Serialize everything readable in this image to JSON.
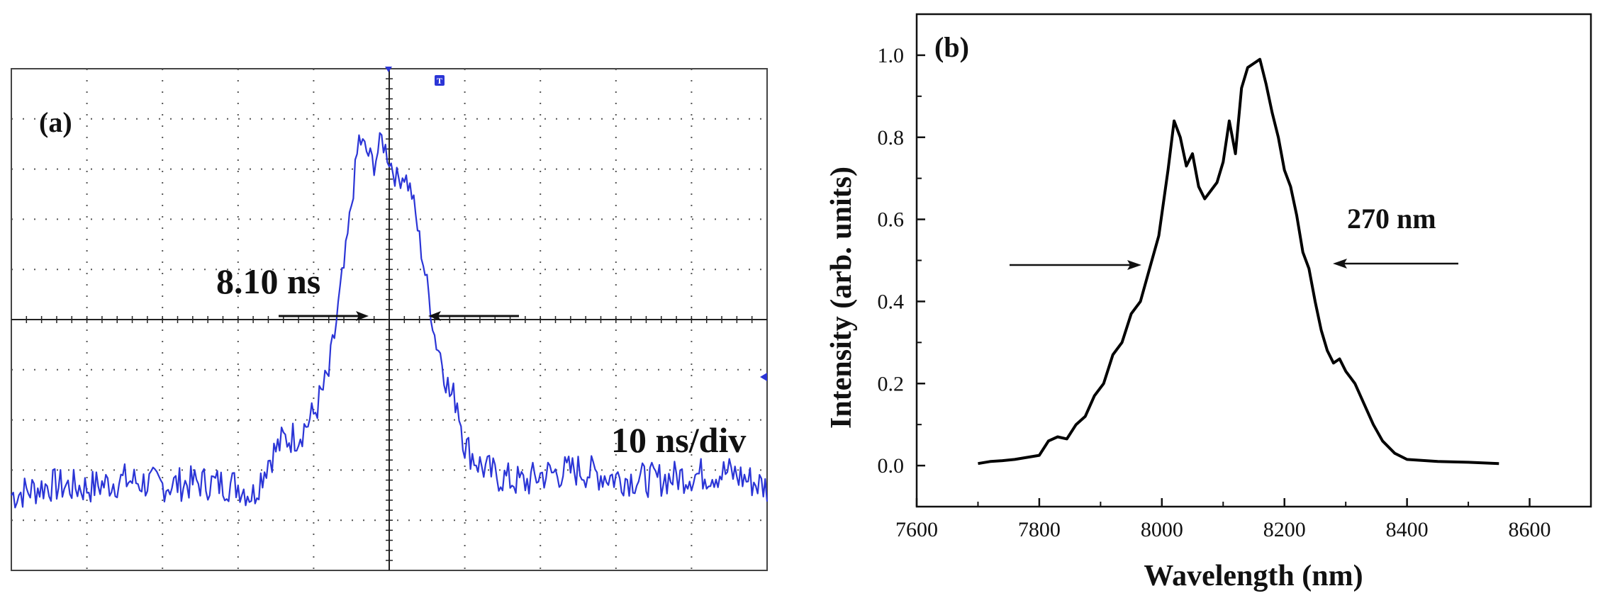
{
  "chart_data": [
    {
      "panel": "(a)",
      "type": "line",
      "title": "",
      "xlabel": "",
      "ylabel": "",
      "annotations": {
        "width_label": "8.10 ns",
        "timebase_label": "10 ns/div",
        "trigger_marker": "T"
      },
      "grid": true,
      "divisions": {
        "x": 10,
        "y": 10
      },
      "xlim": [
        -50,
        50
      ],
      "ylim": [
        -5,
        5
      ],
      "units": {
        "x": "ns",
        "y": "div"
      },
      "series": [
        {
          "name": "pulse",
          "color": "#2b35d6",
          "x": [
            -50,
            -45,
            -40,
            -35,
            -30,
            -25,
            -20,
            -18,
            -16,
            -14,
            -12,
            -10,
            -8,
            -6,
            -4,
            -2,
            -1,
            0,
            1,
            2,
            3,
            4,
            5,
            6,
            7,
            8,
            9,
            10,
            12,
            14,
            16,
            18,
            20,
            25,
            30,
            35,
            40,
            45,
            50
          ],
          "y": [
            -3.5,
            -3.3,
            -3.35,
            -3.2,
            -3.3,
            -3.25,
            -3.3,
            -3.5,
            -2.8,
            -2.4,
            -2.3,
            -1.9,
            -1.1,
            1.0,
            3.6,
            3.1,
            3.6,
            3.2,
            2.8,
            2.9,
            2.5,
            1.6,
            0.7,
            -0.3,
            -0.8,
            -1.5,
            -1.6,
            -2.5,
            -2.9,
            -3.1,
            -3.2,
            -3.25,
            -3.1,
            -3.0,
            -3.15,
            -3.2,
            -3.1,
            -3.05,
            -3.35
          ]
        }
      ]
    },
    {
      "panel": "(b)",
      "type": "line",
      "title": "",
      "xlabel": "Wavelength (nm)",
      "ylabel": "Intensity (arb. units)",
      "xlim": [
        7600,
        8700
      ],
      "ylim": [
        -0.1,
        1.1
      ],
      "xticks": [
        "7600",
        "7800",
        "8000",
        "8200",
        "8400",
        "8600"
      ],
      "yticks": [
        "0.0",
        "0.2",
        "0.4",
        "0.6",
        "0.8",
        "1.0"
      ],
      "grid": false,
      "annotations": {
        "fwhm_label": "270 nm"
      },
      "series": [
        {
          "name": "spectrum",
          "color": "#000000",
          "x": [
            7700,
            7720,
            7740,
            7760,
            7780,
            7800,
            7815,
            7830,
            7845,
            7860,
            7875,
            7890,
            7905,
            7920,
            7935,
            7950,
            7965,
            7980,
            7995,
            8010,
            8020,
            8030,
            8040,
            8050,
            8060,
            8070,
            8080,
            8090,
            8100,
            8110,
            8120,
            8130,
            8140,
            8150,
            8160,
            8170,
            8180,
            8190,
            8200,
            8210,
            8220,
            8230,
            8240,
            8250,
            8260,
            8270,
            8280,
            8290,
            8300,
            8315,
            8330,
            8345,
            8360,
            8380,
            8400,
            8450,
            8500,
            8550
          ],
          "y": [
            0.005,
            0.01,
            0.012,
            0.015,
            0.02,
            0.025,
            0.06,
            0.07,
            0.065,
            0.1,
            0.12,
            0.17,
            0.2,
            0.27,
            0.3,
            0.37,
            0.4,
            0.48,
            0.56,
            0.72,
            0.84,
            0.8,
            0.73,
            0.76,
            0.68,
            0.65,
            0.67,
            0.69,
            0.74,
            0.84,
            0.76,
            0.92,
            0.97,
            0.98,
            0.99,
            0.93,
            0.86,
            0.8,
            0.72,
            0.68,
            0.61,
            0.52,
            0.48,
            0.4,
            0.33,
            0.28,
            0.25,
            0.26,
            0.23,
            0.2,
            0.15,
            0.1,
            0.06,
            0.03,
            0.015,
            0.01,
            0.008,
            0.005
          ]
        }
      ]
    }
  ]
}
